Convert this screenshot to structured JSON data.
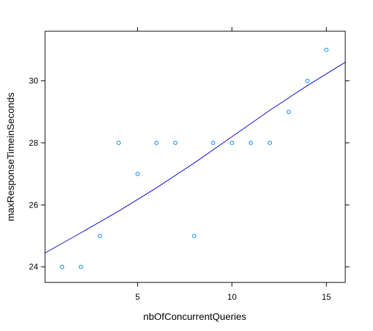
{
  "chart_data": {
    "type": "scatter",
    "xlabel": "nbOfConcurrentQueries",
    "ylabel": "maxResponseTimeinSeconds",
    "xlim": [
      0.1,
      16
    ],
    "ylim": [
      23.5,
      31.6
    ],
    "x_ticks": [
      5,
      10,
      15
    ],
    "y_ticks": [
      24,
      26,
      28,
      30
    ],
    "x_tick_labels": [
      "5",
      "10",
      "15"
    ],
    "y_tick_labels": [
      "24",
      "26",
      "28",
      "30"
    ],
    "grid": false,
    "points": [
      {
        "x": 1,
        "y": 24
      },
      {
        "x": 2,
        "y": 24
      },
      {
        "x": 3,
        "y": 25
      },
      {
        "x": 4,
        "y": 28
      },
      {
        "x": 5,
        "y": 27
      },
      {
        "x": 6,
        "y": 28
      },
      {
        "x": 7,
        "y": 28
      },
      {
        "x": 8,
        "y": 25
      },
      {
        "x": 9,
        "y": 28
      },
      {
        "x": 10,
        "y": 28
      },
      {
        "x": 11,
        "y": 28
      },
      {
        "x": 12,
        "y": 28
      },
      {
        "x": 13,
        "y": 29
      },
      {
        "x": 14,
        "y": 30
      },
      {
        "x": 15,
        "y": 31
      }
    ],
    "fit_curve": [
      {
        "x": 0.1,
        "y": 24.45
      },
      {
        "x": 2,
        "y": 25.1
      },
      {
        "x": 4,
        "y": 25.8
      },
      {
        "x": 6,
        "y": 26.55
      },
      {
        "x": 8,
        "y": 27.35
      },
      {
        "x": 10,
        "y": 28.2
      },
      {
        "x": 12,
        "y": 29.05
      },
      {
        "x": 14,
        "y": 29.85
      },
      {
        "x": 16,
        "y": 30.6
      }
    ],
    "colors": {
      "points": "#0080ff",
      "fit_line": "#0000cc",
      "axes": "#000000"
    }
  }
}
